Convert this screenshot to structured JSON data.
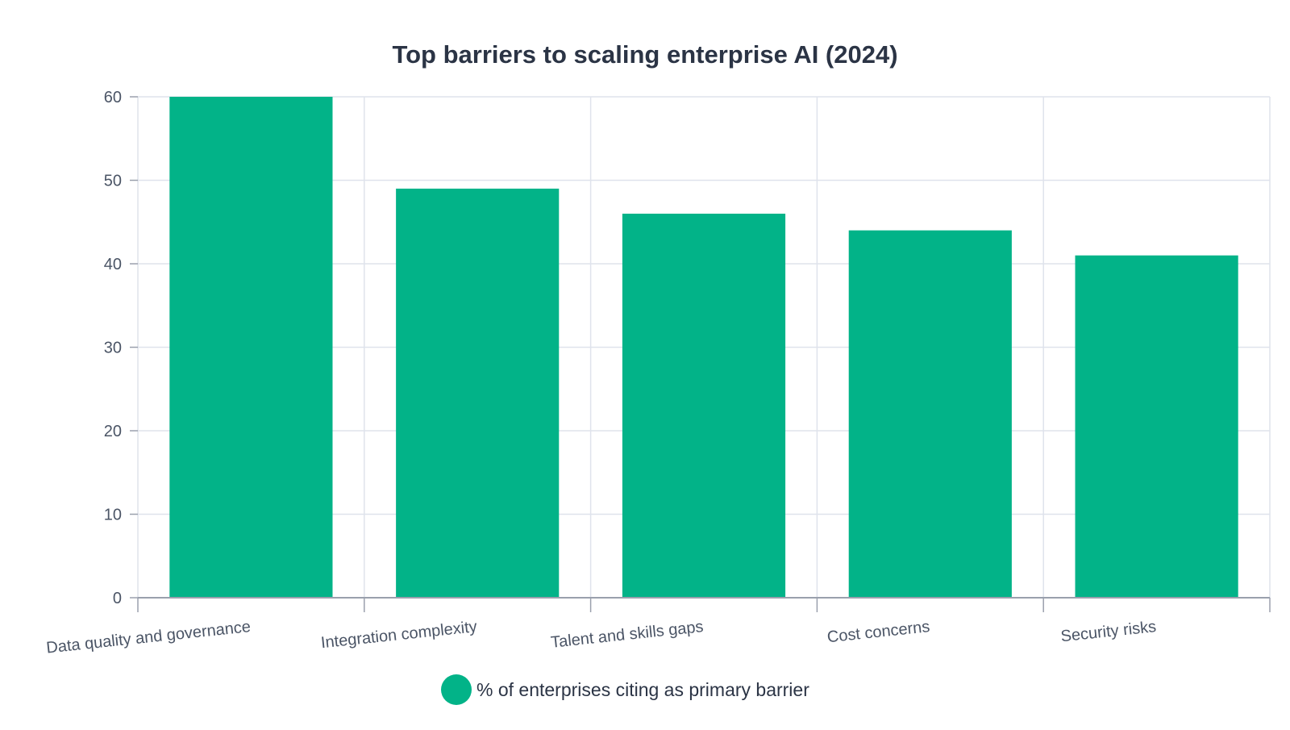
{
  "colors": {
    "bar": "#02b388",
    "grid": "#dfe3ec",
    "axis": "#9aa0ad"
  },
  "chart_data": {
    "type": "bar",
    "title": "Top barriers to scaling enterprise AI (2024)",
    "xlabel": "",
    "ylabel": "",
    "categories": [
      "Data quality and governance",
      "Integration complexity",
      "Talent and skills gaps",
      "Cost concerns",
      "Security risks"
    ],
    "series": [
      {
        "name": "% of enterprises citing as primary barrier",
        "values": [
          60,
          49,
          46,
          44,
          41
        ]
      }
    ],
    "ylim": [
      0,
      60
    ],
    "yticks": [
      "0",
      "10",
      "20",
      "30",
      "40",
      "50",
      "60"
    ],
    "grid": true,
    "legend": {
      "position": "bottom-center",
      "marker": "circle"
    }
  }
}
